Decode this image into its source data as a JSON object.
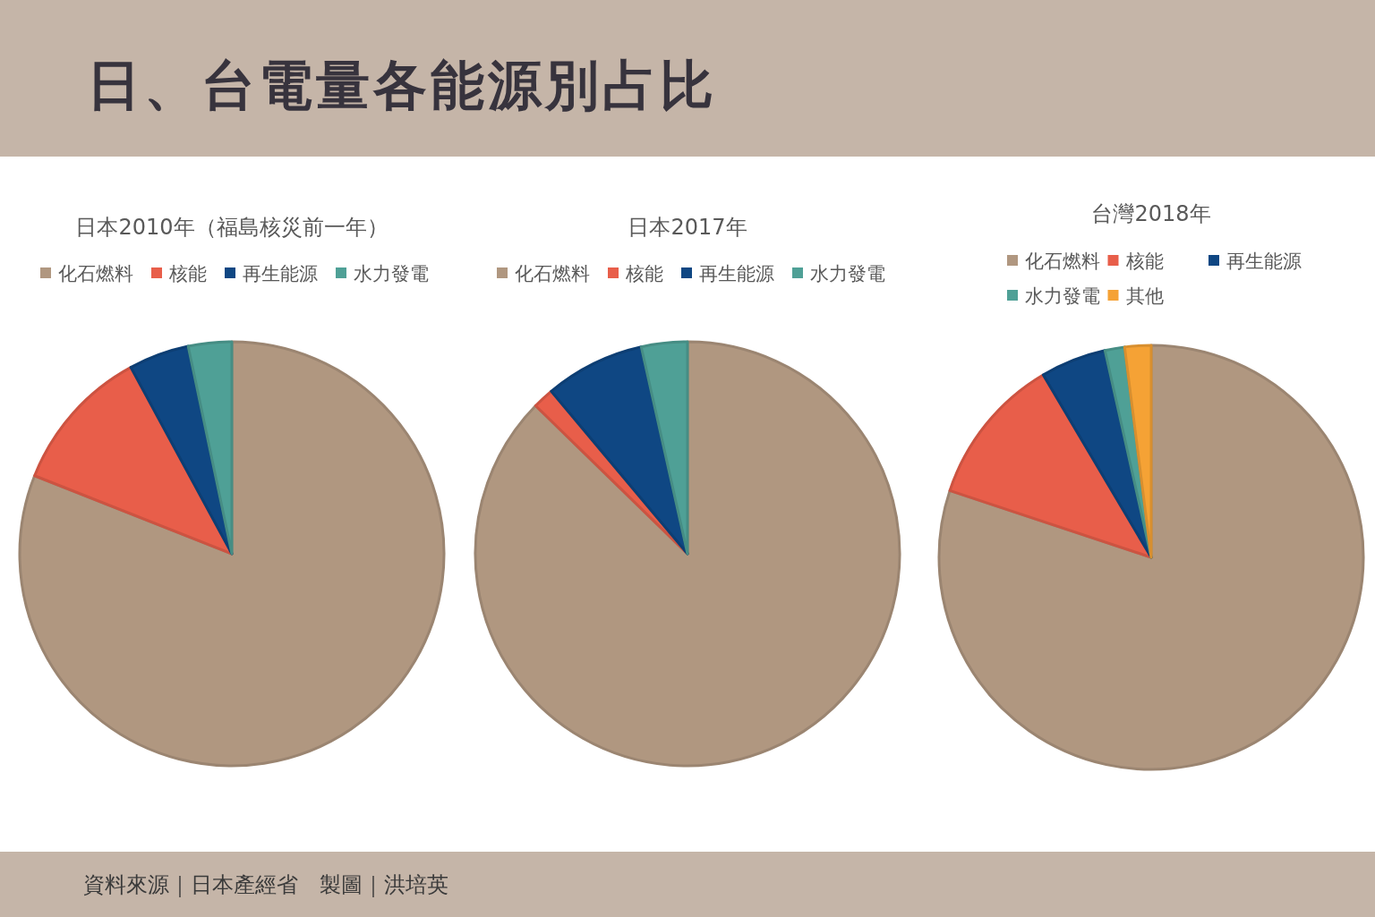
{
  "chart_data": [
    {
      "type": "other",
      "title": "日、台電量各能源別占比",
      "annotations": [
        "資料來源｜日本產經省　製圖｜洪培英"
      ]
    },
    {
      "type": "pie",
      "title": "日本2010年（福島核災前一年）",
      "categories": [
        "化石燃料",
        "核能",
        "再生能源",
        "水力發電"
      ],
      "values": [
        81.0,
        11.1,
        4.6,
        3.3
      ],
      "colors": [
        "#b09780",
        "#e85e4a",
        "#0f4783",
        "#4fa096"
      ],
      "legend": "top"
    },
    {
      "type": "pie",
      "title": "日本2017年",
      "categories": [
        "化石燃料",
        "核能",
        "再生能源",
        "水力發電"
      ],
      "values": [
        87.3,
        1.6,
        7.6,
        3.5
      ],
      "colors": [
        "#b09780",
        "#e85e4a",
        "#0f4783",
        "#4fa096"
      ],
      "legend": "top"
    },
    {
      "type": "pie",
      "title": "台灣2018年",
      "categories": [
        "化石燃料",
        "核能",
        "再生能源",
        "水力發電",
        "其他"
      ],
      "values": [
        80.1,
        11.4,
        5.0,
        1.5,
        2.0
      ],
      "colors": [
        "#b09780",
        "#e85e4a",
        "#0f4783",
        "#4fa096",
        "#f5a235"
      ],
      "legend": "top"
    }
  ]
}
